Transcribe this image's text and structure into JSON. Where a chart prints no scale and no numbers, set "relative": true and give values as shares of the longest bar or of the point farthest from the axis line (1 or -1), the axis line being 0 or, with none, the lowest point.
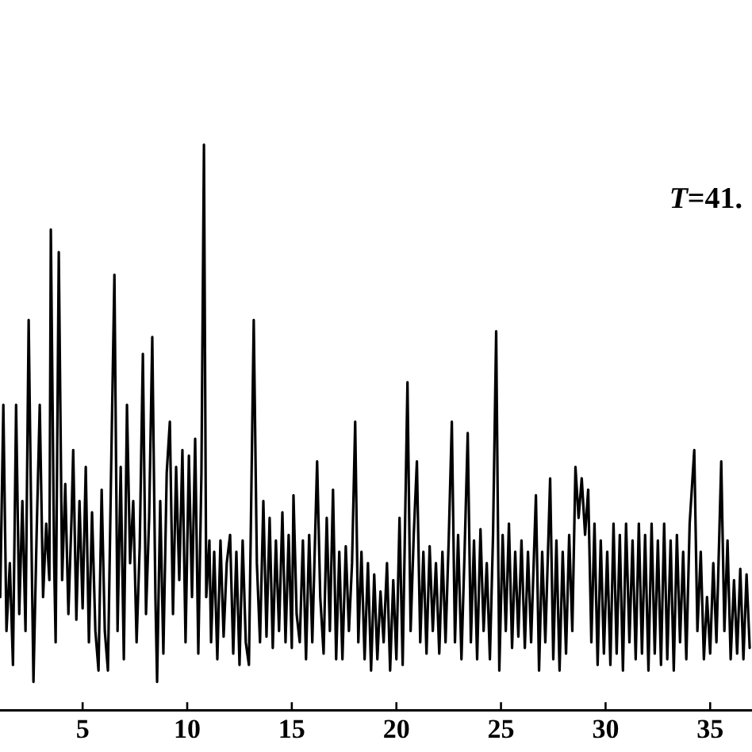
{
  "chart_data": {
    "type": "line",
    "relative": true,
    "color": "#000000",
    "marker": "none",
    "line_style": "solid",
    "xlim": [
      1.05,
      37.0
    ],
    "xticks": [
      5,
      10,
      15,
      20,
      25,
      30,
      35
    ],
    "annotations": [
      "T=41."
    ],
    "x": [
      1.06,
      1.21,
      1.36,
      1.52,
      1.67,
      1.82,
      1.97,
      2.12,
      2.27,
      2.42,
      2.58,
      2.65,
      2.8,
      2.95,
      3.11,
      3.26,
      3.41,
      3.48,
      3.64,
      3.71,
      3.86,
      4.02,
      4.17,
      4.32,
      4.47,
      4.55,
      4.7,
      4.85,
      5.0,
      5.15,
      5.3,
      5.45,
      5.61,
      5.76,
      5.91,
      6.06,
      6.21,
      6.36,
      6.52,
      6.67,
      6.82,
      6.97,
      7.12,
      7.27,
      7.42,
      7.58,
      7.73,
      7.88,
      8.03,
      8.18,
      8.33,
      8.48,
      8.56,
      8.71,
      8.86,
      9.02,
      9.17,
      9.32,
      9.47,
      9.62,
      9.77,
      9.92,
      10.08,
      10.23,
      10.38,
      10.53,
      10.68,
      10.8,
      10.91,
      11.06,
      11.14,
      11.29,
      11.44,
      11.59,
      11.74,
      11.89,
      12.05,
      12.2,
      12.35,
      12.5,
      12.65,
      12.8,
      12.95,
      13.18,
      13.33,
      13.48,
      13.64,
      13.79,
      13.94,
      14.09,
      14.24,
      14.39,
      14.55,
      14.7,
      14.85,
      15.0,
      15.08,
      15.23,
      15.38,
      15.53,
      15.68,
      15.83,
      15.98,
      16.21,
      16.36,
      16.52,
      16.67,
      16.82,
      16.97,
      17.12,
      17.27,
      17.42,
      17.58,
      17.73,
      17.88,
      18.03,
      18.18,
      18.33,
      18.48,
      18.64,
      18.79,
      18.94,
      19.09,
      19.24,
      19.39,
      19.55,
      19.7,
      19.85,
      20.0,
      20.15,
      20.3,
      20.53,
      20.68,
      20.83,
      20.98,
      21.14,
      21.29,
      21.44,
      21.59,
      21.74,
      21.89,
      22.05,
      22.2,
      22.35,
      22.5,
      22.65,
      22.8,
      22.95,
      23.11,
      23.26,
      23.41,
      23.56,
      23.71,
      23.86,
      24.02,
      24.17,
      24.32,
      24.47,
      24.62,
      24.77,
      24.92,
      25.08,
      25.23,
      25.38,
      25.53,
      25.68,
      25.83,
      25.98,
      26.14,
      26.29,
      26.44,
      26.67,
      26.82,
      26.97,
      27.12,
      27.35,
      27.5,
      27.65,
      27.8,
      27.95,
      28.11,
      28.26,
      28.41,
      28.56,
      28.71,
      28.86,
      29.02,
      29.17,
      29.32,
      29.47,
      29.62,
      29.77,
      29.92,
      30.08,
      30.23,
      30.38,
      30.53,
      30.68,
      30.83,
      30.98,
      31.14,
      31.29,
      31.44,
      31.59,
      31.74,
      31.89,
      32.05,
      32.2,
      32.35,
      32.5,
      32.65,
      32.8,
      32.95,
      33.11,
      33.26,
      33.41,
      33.56,
      33.71,
      33.86,
      34.02,
      34.24,
      34.39,
      34.55,
      34.7,
      34.85,
      35.0,
      35.15,
      35.3,
      35.53,
      35.68,
      35.83,
      35.98,
      36.14,
      36.29,
      36.44,
      36.59,
      36.74,
      36.89
    ],
    "values": [
      0.2,
      0.54,
      0.14,
      0.26,
      0.08,
      0.54,
      0.17,
      0.37,
      0.14,
      0.69,
      0.23,
      0.05,
      0.31,
      0.54,
      0.2,
      0.33,
      0.23,
      0.85,
      0.26,
      0.12,
      0.81,
      0.23,
      0.4,
      0.17,
      0.34,
      0.46,
      0.16,
      0.37,
      0.18,
      0.43,
      0.12,
      0.35,
      0.14,
      0.07,
      0.39,
      0.14,
      0.07,
      0.42,
      0.77,
      0.14,
      0.43,
      0.09,
      0.54,
      0.26,
      0.37,
      0.12,
      0.29,
      0.63,
      0.17,
      0.34,
      0.66,
      0.2,
      0.05,
      0.37,
      0.1,
      0.42,
      0.51,
      0.17,
      0.43,
      0.23,
      0.46,
      0.12,
      0.45,
      0.2,
      0.48,
      0.1,
      0.42,
      1.0,
      0.2,
      0.3,
      0.12,
      0.28,
      0.09,
      0.3,
      0.13,
      0.26,
      0.31,
      0.1,
      0.28,
      0.08,
      0.3,
      0.12,
      0.08,
      0.69,
      0.26,
      0.12,
      0.37,
      0.13,
      0.34,
      0.11,
      0.3,
      0.14,
      0.35,
      0.12,
      0.31,
      0.11,
      0.38,
      0.17,
      0.12,
      0.3,
      0.09,
      0.31,
      0.12,
      0.44,
      0.2,
      0.1,
      0.34,
      0.14,
      0.39,
      0.09,
      0.28,
      0.09,
      0.29,
      0.14,
      0.26,
      0.51,
      0.12,
      0.28,
      0.09,
      0.26,
      0.07,
      0.24,
      0.09,
      0.21,
      0.12,
      0.26,
      0.07,
      0.23,
      0.09,
      0.34,
      0.08,
      0.58,
      0.14,
      0.31,
      0.44,
      0.12,
      0.28,
      0.1,
      0.29,
      0.14,
      0.26,
      0.1,
      0.28,
      0.12,
      0.3,
      0.51,
      0.12,
      0.31,
      0.09,
      0.28,
      0.49,
      0.12,
      0.3,
      0.09,
      0.32,
      0.14,
      0.26,
      0.09,
      0.31,
      0.67,
      0.07,
      0.31,
      0.14,
      0.33,
      0.11,
      0.28,
      0.13,
      0.3,
      0.11,
      0.28,
      0.12,
      0.38,
      0.07,
      0.28,
      0.12,
      0.41,
      0.09,
      0.3,
      0.07,
      0.28,
      0.1,
      0.31,
      0.14,
      0.43,
      0.34,
      0.41,
      0.31,
      0.39,
      0.12,
      0.33,
      0.08,
      0.3,
      0.1,
      0.28,
      0.08,
      0.33,
      0.1,
      0.31,
      0.07,
      0.33,
      0.12,
      0.3,
      0.09,
      0.33,
      0.1,
      0.31,
      0.07,
      0.33,
      0.1,
      0.3,
      0.08,
      0.33,
      0.09,
      0.3,
      0.07,
      0.31,
      0.12,
      0.28,
      0.09,
      0.33,
      0.46,
      0.14,
      0.28,
      0.09,
      0.2,
      0.1,
      0.26,
      0.12,
      0.44,
      0.14,
      0.3,
      0.09,
      0.23,
      0.1,
      0.25,
      0.09,
      0.24,
      0.11
    ]
  }
}
